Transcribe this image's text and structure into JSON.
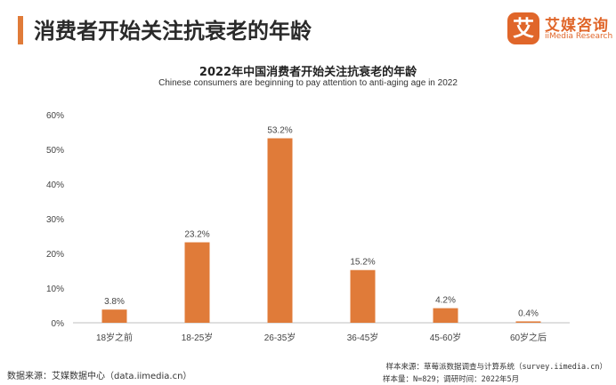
{
  "header": {
    "title": "消费者开始关注抗衰老的年龄",
    "accent_color": "#e07b39"
  },
  "logo": {
    "badge": "艾",
    "name_cn": "艾媒咨询",
    "name_en": "iiMedia Research",
    "color": "#e0662a"
  },
  "chart_data": {
    "type": "bar",
    "title": "2022年中国消费者开始关注抗衰老的年龄",
    "subtitle": "Chinese consumers are beginning to pay attention to anti-aging age in 2022",
    "categories": [
      "18岁之前",
      "18-25岁",
      "26-35岁",
      "36-45岁",
      "45-60岁",
      "60岁之后"
    ],
    "values": [
      3.8,
      23.2,
      53.2,
      15.2,
      4.2,
      0.4
    ],
    "value_labels": [
      "3.8%",
      "23.2%",
      "53.2%",
      "15.2%",
      "4.2%",
      "0.4%"
    ],
    "ylim": [
      0,
      60
    ],
    "yticks": [
      "0%",
      "10%",
      "20%",
      "30%",
      "40%",
      "50%",
      "60%"
    ],
    "bar_color": "#e07b39",
    "grid": false
  },
  "footer": {
    "source": "数据来源：艾媒数据中心（data.iimedia.cn）",
    "sample_source": "样本来源：草莓派数据调查与计算系统（survey.iimedia.cn）",
    "sample_size": "样本量：N=829；调研时间：2022年5月"
  }
}
